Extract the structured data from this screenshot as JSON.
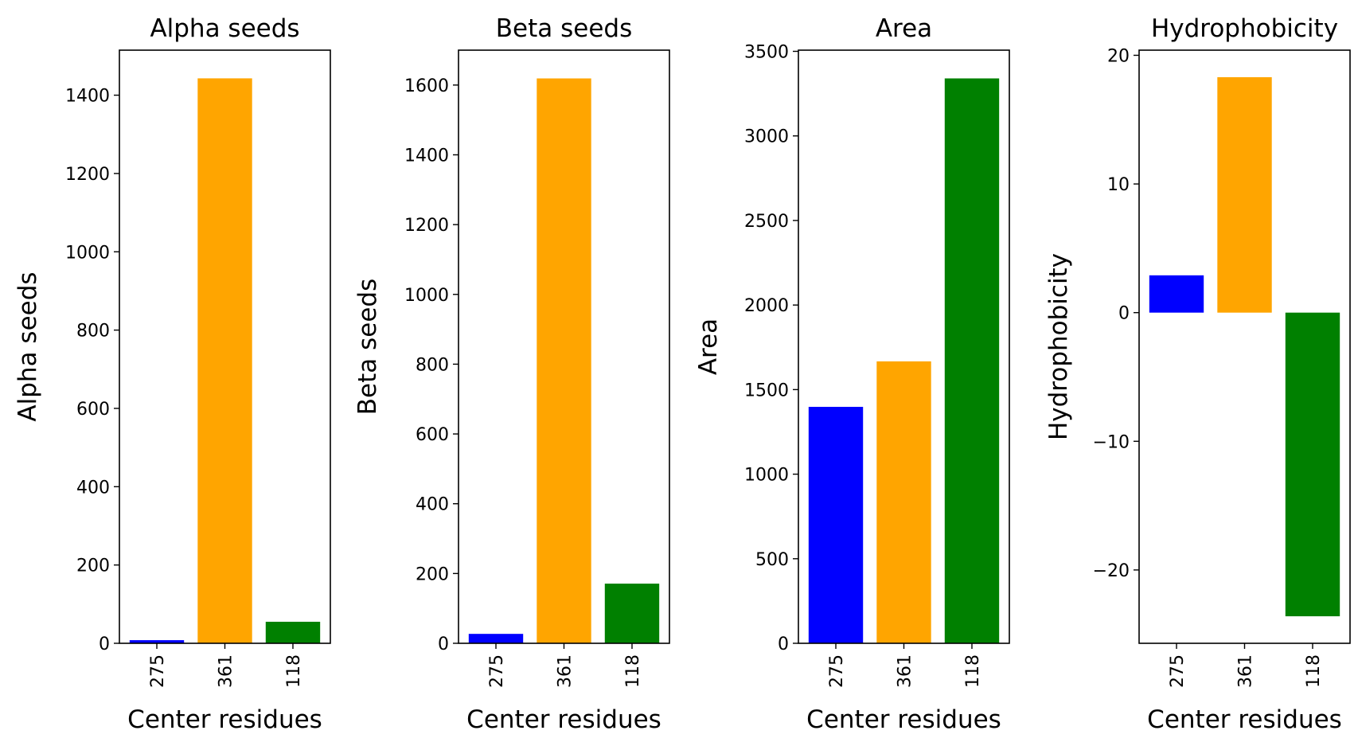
{
  "chart_data": [
    {
      "type": "bar",
      "title": "Alpha seeds",
      "xlabel": "Center residues",
      "ylabel": "Alpha seeds",
      "categories": [
        "275",
        "361",
        "118"
      ],
      "values": [
        8,
        1443,
        55
      ],
      "colors": [
        "#0000ff",
        "#ffa500",
        "#008000"
      ],
      "ylim": [
        0,
        1515
      ],
      "yticks": [
        0,
        200,
        400,
        600,
        800,
        1000,
        1200,
        1400
      ],
      "ytick_labels": [
        "0",
        "200",
        "400",
        "600",
        "800",
        "1000",
        "1200",
        "1400"
      ],
      "grid": false,
      "legend": "none"
    },
    {
      "type": "bar",
      "title": "Beta seeds",
      "xlabel": "Center residues",
      "ylabel": "Beta seeds",
      "categories": [
        "275",
        "361",
        "118"
      ],
      "values": [
        27,
        1619,
        171
      ],
      "colors": [
        "#0000ff",
        "#ffa500",
        "#008000"
      ],
      "ylim": [
        0,
        1700
      ],
      "yticks": [
        0,
        200,
        400,
        600,
        800,
        1000,
        1200,
        1400,
        1600
      ],
      "ytick_labels": [
        "0",
        "200",
        "400",
        "600",
        "800",
        "1000",
        "1200",
        "1400",
        "1600"
      ],
      "grid": false,
      "legend": "none"
    },
    {
      "type": "bar",
      "title": "Area",
      "xlabel": "Center residues",
      "ylabel": "Area",
      "categories": [
        "275",
        "361",
        "118"
      ],
      "values": [
        1398,
        1667,
        3340
      ],
      "colors": [
        "#0000ff",
        "#ffa500",
        "#008000"
      ],
      "ylim": [
        0,
        3507
      ],
      "yticks": [
        0,
        500,
        1000,
        1500,
        2000,
        2500,
        3000,
        3500
      ],
      "ytick_labels": [
        "0",
        "500",
        "1000",
        "1500",
        "2000",
        "2500",
        "3000",
        "3500"
      ],
      "grid": false,
      "legend": "none"
    },
    {
      "type": "bar",
      "title": "Hydrophobicity",
      "xlabel": "Center residues",
      "ylabel": "Hydrophobicity",
      "categories": [
        "275",
        "361",
        "118"
      ],
      "values": [
        2.9,
        18.3,
        -23.6
      ],
      "colors": [
        "#0000ff",
        "#ffa500",
        "#008000"
      ],
      "ylim": [
        -25.7,
        20.4
      ],
      "yticks": [
        -20,
        -10,
        0,
        10,
        20
      ],
      "ytick_labels": [
        "−20",
        "−10",
        "0",
        "10",
        "20"
      ],
      "grid": false,
      "legend": "none"
    }
  ]
}
